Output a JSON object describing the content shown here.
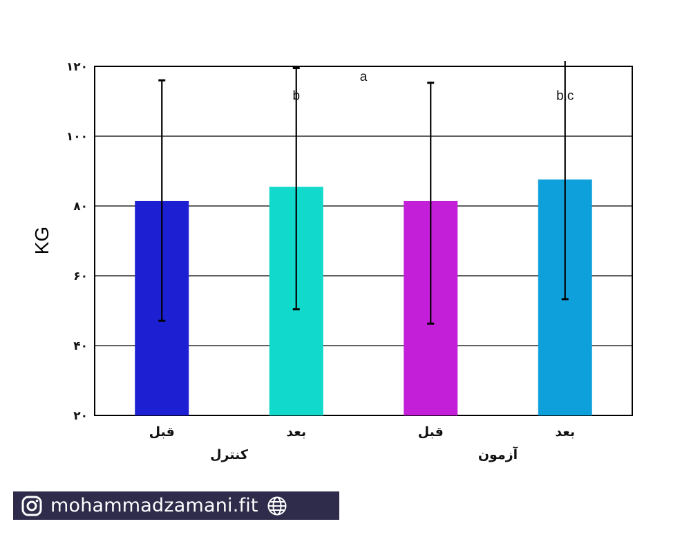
{
  "chart_data": {
    "type": "bar",
    "ylabel": "KG",
    "ylim": [
      20,
      120
    ],
    "yticks": [
      {
        "value": 20,
        "label": "۲۰"
      },
      {
        "value": 40,
        "label": "۴۰"
      },
      {
        "value": 60,
        "label": "۶۰"
      },
      {
        "value": 80,
        "label": "۸۰"
      },
      {
        "value": 100,
        "label": "۱۰۰"
      },
      {
        "value": 120,
        "label": "۱۲۰"
      }
    ],
    "grid": true,
    "categories": [
      "قبل",
      "بعد",
      "قبل",
      "بعد"
    ],
    "groups": [
      {
        "label": "کنترل",
        "categories": [
          0,
          1
        ]
      },
      {
        "label": "آزمون",
        "categories": [
          2,
          3
        ]
      }
    ],
    "values": [
      81.4,
      85.5,
      81.4,
      87.6
    ],
    "error_bars": [
      {
        "low": 47.1,
        "high": 116.0
      },
      {
        "low": 50.4,
        "high": 119.5
      },
      {
        "low": 46.3,
        "high": 115.3
      },
      {
        "low": 53.3,
        "high": 122.4
      }
    ],
    "colors": [
      "#1c1fd2",
      "#11d9cc",
      "#c31fd8",
      "#0ea0da"
    ],
    "annotations": [
      {
        "text": "b",
        "category": 1,
        "y": 111.8
      },
      {
        "text": "a",
        "category": 1.5,
        "y": 117.2
      },
      {
        "text": "b,c",
        "category": 3,
        "y": 111.8
      }
    ]
  },
  "watermark": {
    "handle": "mohammadzamani.fit",
    "left_icon": "instagram-icon",
    "right_icon": "globe-icon",
    "background": "#2e2c4a"
  }
}
